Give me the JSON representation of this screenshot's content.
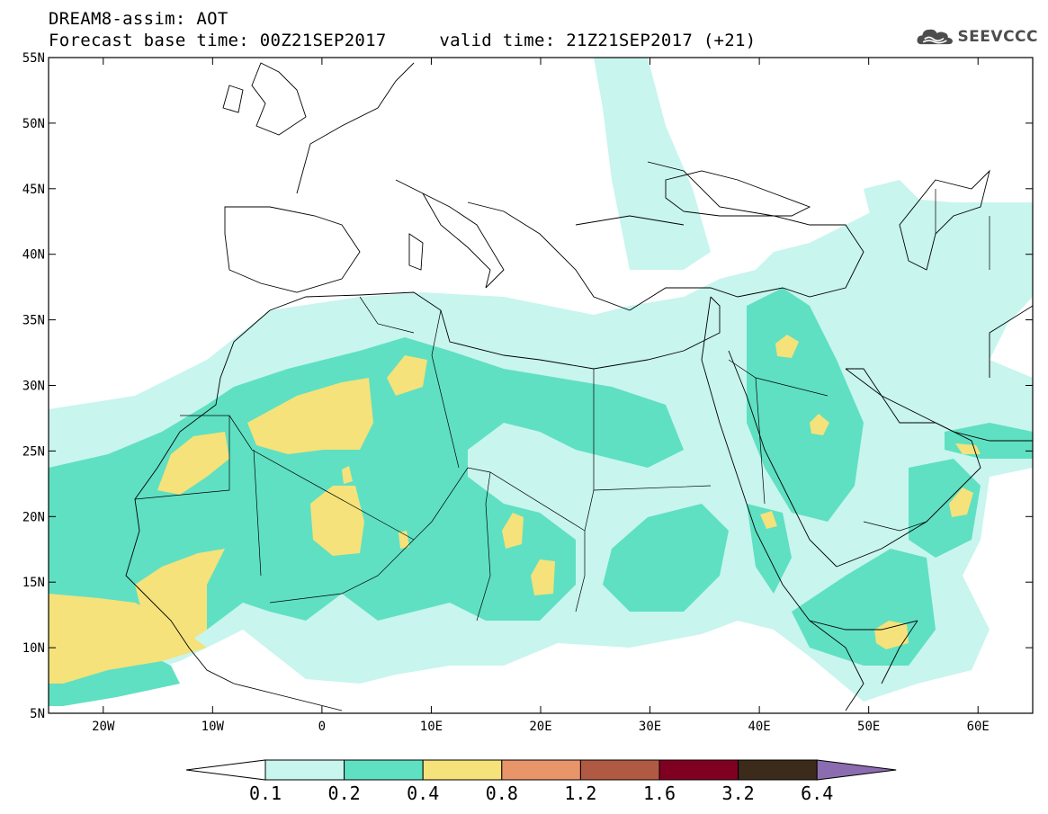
{
  "header": {
    "title_line1": "DREAM8-assim: AOT",
    "title_line2": "Forecast base time: 00Z21SEP2017     valid time: 21Z21SEP2017 (+21)"
  },
  "logo": {
    "text": "SEEVCCC",
    "icon": "cloud-logo-icon",
    "color": "#4d4d4d"
  },
  "map": {
    "extent": {
      "lon_min": -25,
      "lon_max": 65,
      "lat_min": 5,
      "lat_max": 55
    },
    "lat_ticks": [
      {
        "value": 55,
        "label": "55N"
      },
      {
        "value": 50,
        "label": "50N"
      },
      {
        "value": 45,
        "label": "45N"
      },
      {
        "value": 40,
        "label": "40N"
      },
      {
        "value": 35,
        "label": "35N"
      },
      {
        "value": 30,
        "label": "30N"
      },
      {
        "value": 25,
        "label": "25N"
      },
      {
        "value": 20,
        "label": "20N"
      },
      {
        "value": 15,
        "label": "15N"
      },
      {
        "value": 10,
        "label": "10N"
      },
      {
        "value": 5,
        "label": "5N"
      }
    ],
    "lon_ticks": [
      {
        "value": -20,
        "label": "20W"
      },
      {
        "value": -10,
        "label": "10W"
      },
      {
        "value": 0,
        "label": "0"
      },
      {
        "value": 10,
        "label": "10E"
      },
      {
        "value": 20,
        "label": "20E"
      },
      {
        "value": 30,
        "label": "30E"
      },
      {
        "value": 40,
        "label": "40E"
      },
      {
        "value": 50,
        "label": "50E"
      },
      {
        "value": 60,
        "label": "60E"
      }
    ],
    "coast_color": "#000000"
  },
  "colorbar": {
    "colors": [
      "#ffffff",
      "#c8f5ee",
      "#5fe0c2",
      "#f5e27a",
      "#e8956a",
      "#b05a44",
      "#800022",
      "#3c2a1a",
      "#8c6cb0"
    ],
    "labels": [
      "0.1",
      "0.2",
      "0.4",
      "0.8",
      "1.2",
      "1.6",
      "3.2",
      "6.4"
    ]
  }
}
